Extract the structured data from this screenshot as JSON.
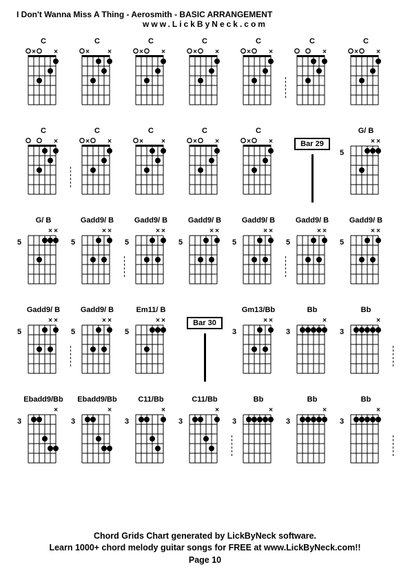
{
  "title": "I Don't Wanna Miss A Thing - Aerosmith - BASIC ARRANGEMENT",
  "subtitle": "www.LickByNeck.com",
  "footer1": "Chord Grids Chart generated by LickByNeck software.",
  "footer2": "Learn 1000+ chord melody guitar songs for FREE at www.LickByNeck.com!!",
  "page": "Page 10",
  "colors": {
    "bg": "#ffffff",
    "line": "#000000",
    "dot": "#000000",
    "text": "#000000"
  },
  "chords": [
    {
      "name": "C",
      "fret": "",
      "type": "chord",
      "nut": true,
      "top": [
        "x",
        "",
        "",
        "o",
        "x",
        "o"
      ],
      "dots": [
        [
          0,
          1
        ],
        [
          1,
          2
        ],
        [
          3,
          3
        ]
      ],
      "sep": false
    },
    {
      "name": "C",
      "fret": "",
      "type": "chord",
      "nut": true,
      "top": [
        "x",
        "",
        "",
        "",
        "x",
        "o"
      ],
      "dots": [
        [
          0,
          1
        ],
        [
          1,
          2
        ],
        [
          2,
          1
        ],
        [
          3,
          3
        ]
      ],
      "sep": false
    },
    {
      "name": "C",
      "fret": "",
      "type": "chord",
      "nut": true,
      "top": [
        "x",
        "",
        "",
        "o",
        "x",
        "o"
      ],
      "dots": [
        [
          0,
          1
        ],
        [
          1,
          2
        ],
        [
          3,
          3
        ]
      ],
      "sep": false
    },
    {
      "name": "C",
      "fret": "",
      "type": "chord",
      "nut": true,
      "top": [
        "x",
        "",
        "",
        "o",
        "x",
        "o"
      ],
      "dots": [
        [
          0,
          1
        ],
        [
          1,
          2
        ],
        [
          3,
          3
        ]
      ],
      "sep": false
    },
    {
      "name": "C",
      "fret": "",
      "type": "chord",
      "nut": true,
      "top": [
        "x",
        "",
        "",
        "o",
        "x",
        "o"
      ],
      "dots": [
        [
          0,
          1
        ],
        [
          1,
          2
        ],
        [
          3,
          3
        ]
      ],
      "sep": true
    },
    {
      "name": "C",
      "fret": "",
      "type": "chord",
      "nut": true,
      "top": [
        "x",
        "",
        "",
        "o",
        "",
        "o"
      ],
      "dots": [
        [
          0,
          1
        ],
        [
          1,
          2
        ],
        [
          2,
          1
        ],
        [
          3,
          3
        ]
      ],
      "sep": false
    },
    {
      "name": "C",
      "fret": "",
      "type": "chord",
      "nut": true,
      "top": [
        "x",
        "",
        "",
        "o",
        "x",
        "o"
      ],
      "dots": [
        [
          0,
          1
        ],
        [
          1,
          2
        ],
        [
          3,
          3
        ]
      ],
      "sep": false
    },
    {
      "name": "C",
      "fret": "",
      "type": "chord",
      "nut": true,
      "top": [
        "x",
        "",
        "",
        "o",
        "",
        "o"
      ],
      "dots": [
        [
          0,
          1
        ],
        [
          1,
          2
        ],
        [
          2,
          1
        ],
        [
          3,
          3
        ]
      ],
      "sep": true
    },
    {
      "name": "C",
      "fret": "",
      "type": "chord",
      "nut": true,
      "top": [
        "x",
        "",
        "",
        "o",
        "x",
        "o"
      ],
      "dots": [
        [
          0,
          1
        ],
        [
          1,
          2
        ],
        [
          3,
          3
        ]
      ],
      "sep": false
    },
    {
      "name": "C",
      "fret": "",
      "type": "chord",
      "nut": true,
      "top": [
        "x",
        "",
        "",
        "",
        "x",
        "o"
      ],
      "dots": [
        [
          0,
          1
        ],
        [
          1,
          2
        ],
        [
          2,
          1
        ],
        [
          3,
          3
        ]
      ],
      "sep": false
    },
    {
      "name": "C",
      "fret": "",
      "type": "chord",
      "nut": true,
      "top": [
        "x",
        "",
        "",
        "o",
        "x",
        "o"
      ],
      "dots": [
        [
          0,
          1
        ],
        [
          1,
          2
        ],
        [
          3,
          3
        ]
      ],
      "sep": false
    },
    {
      "name": "C",
      "fret": "",
      "type": "chord",
      "nut": true,
      "top": [
        "x",
        "",
        "",
        "o",
        "x",
        "o"
      ],
      "dots": [
        [
          0,
          1
        ],
        [
          1,
          2
        ],
        [
          3,
          3
        ]
      ],
      "sep": false
    },
    {
      "name": "Bar 29",
      "type": "bar"
    },
    {
      "name": "G/ B",
      "fret": "5",
      "type": "chord",
      "nut": false,
      "top": [
        "x",
        "x",
        "",
        "",
        "",
        ""
      ],
      "dots": [
        [
          0,
          1
        ],
        [
          1,
          1
        ],
        [
          2,
          1
        ],
        [
          3,
          3
        ]
      ],
      "sep": false
    },
    {
      "name": "G/ B",
      "fret": "5",
      "type": "chord",
      "nut": false,
      "top": [
        "x",
        "x",
        "",
        "",
        "",
        ""
      ],
      "dots": [
        [
          0,
          1
        ],
        [
          1,
          1
        ],
        [
          2,
          1
        ],
        [
          3,
          3
        ]
      ],
      "sep": false
    },
    {
      "name": "Gadd9/ B",
      "fret": "5",
      "type": "chord",
      "nut": false,
      "top": [
        "x",
        "x",
        "",
        "",
        "",
        ""
      ],
      "dots": [
        [
          0,
          1
        ],
        [
          1,
          3
        ],
        [
          2,
          1
        ],
        [
          3,
          3
        ]
      ],
      "sep": true
    },
    {
      "name": "Gadd9/ B",
      "fret": "5",
      "type": "chord",
      "nut": false,
      "top": [
        "x",
        "x",
        "",
        "",
        "",
        ""
      ],
      "dots": [
        [
          0,
          1
        ],
        [
          1,
          3
        ],
        [
          2,
          1
        ],
        [
          3,
          3
        ]
      ],
      "sep": false
    },
    {
      "name": "Gadd9/ B",
      "fret": "5",
      "type": "chord",
      "nut": false,
      "top": [
        "x",
        "x",
        "",
        "",
        "",
        ""
      ],
      "dots": [
        [
          0,
          1
        ],
        [
          1,
          3
        ],
        [
          2,
          1
        ],
        [
          3,
          3
        ]
      ],
      "sep": false
    },
    {
      "name": "Gadd9/ B",
      "fret": "5",
      "type": "chord",
      "nut": false,
      "top": [
        "x",
        "x",
        "",
        "",
        "",
        ""
      ],
      "dots": [
        [
          0,
          1
        ],
        [
          1,
          3
        ],
        [
          2,
          1
        ],
        [
          3,
          3
        ]
      ],
      "sep": true
    },
    {
      "name": "Gadd9/ B",
      "fret": "5",
      "type": "chord",
      "nut": false,
      "top": [
        "x",
        "x",
        "",
        "",
        "",
        ""
      ],
      "dots": [
        [
          0,
          1
        ],
        [
          1,
          3
        ],
        [
          2,
          1
        ],
        [
          3,
          3
        ]
      ],
      "sep": false
    },
    {
      "name": "Gadd9/ B",
      "fret": "5",
      "type": "chord",
      "nut": false,
      "top": [
        "x",
        "x",
        "",
        "",
        "",
        ""
      ],
      "dots": [
        [
          0,
          1
        ],
        [
          1,
          3
        ],
        [
          2,
          1
        ],
        [
          3,
          3
        ]
      ],
      "sep": false
    },
    {
      "name": "Gadd9/ B",
      "fret": "5",
      "type": "chord",
      "nut": false,
      "top": [
        "x",
        "x",
        "",
        "",
        "",
        ""
      ],
      "dots": [
        [
          0,
          1
        ],
        [
          1,
          3
        ],
        [
          2,
          1
        ],
        [
          3,
          3
        ]
      ],
      "sep": true
    },
    {
      "name": "Gadd9/ B",
      "fret": "5",
      "type": "chord",
      "nut": false,
      "top": [
        "x",
        "x",
        "",
        "",
        "",
        ""
      ],
      "dots": [
        [
          0,
          1
        ],
        [
          1,
          3
        ],
        [
          2,
          1
        ],
        [
          3,
          3
        ]
      ],
      "sep": false
    },
    {
      "name": "Em11/ B",
      "fret": "5",
      "type": "chord",
      "nut": false,
      "top": [
        "x",
        "x",
        "",
        "",
        "",
        ""
      ],
      "dots": [
        [
          0,
          1
        ],
        [
          1,
          1
        ],
        [
          2,
          1
        ],
        [
          3,
          3
        ]
      ],
      "sep": false
    },
    {
      "name": "Bar 30",
      "type": "bar"
    },
    {
      "name": "Gm13/Bb",
      "fret": "3",
      "type": "chord",
      "nut": false,
      "top": [
        "x",
        "x",
        "",
        "",
        "",
        ""
      ],
      "dots": [
        [
          0,
          1
        ],
        [
          1,
          3
        ],
        [
          2,
          1
        ],
        [
          3,
          3
        ]
      ],
      "sep": false
    },
    {
      "name": "Bb",
      "fret": "3",
      "type": "chord",
      "nut": false,
      "top": [
        "x",
        "",
        "",
        "",
        "",
        ""
      ],
      "dots": [
        [
          0,
          1
        ],
        [
          1,
          1
        ],
        [
          2,
          1
        ],
        [
          3,
          1
        ],
        [
          4,
          1
        ]
      ],
      "sep": false
    },
    {
      "name": "Bb",
      "fret": "3",
      "type": "chord",
      "nut": false,
      "top": [
        "x",
        "",
        "",
        "",
        "",
        ""
      ],
      "dots": [
        [
          0,
          1
        ],
        [
          1,
          1
        ],
        [
          2,
          1
        ],
        [
          3,
          1
        ],
        [
          4,
          1
        ]
      ],
      "sep": true
    },
    {
      "name": "Ebadd9/Bb",
      "fret": "3",
      "type": "chord",
      "nut": false,
      "top": [
        "x",
        "",
        "",
        "",
        "",
        ""
      ],
      "dots": [
        [
          0,
          4
        ],
        [
          1,
          4
        ],
        [
          2,
          3
        ],
        [
          3,
          1
        ],
        [
          4,
          1
        ]
      ],
      "sep": false
    },
    {
      "name": "Ebadd9/Bb",
      "fret": "3",
      "type": "chord",
      "nut": false,
      "top": [
        "x",
        "",
        "",
        "",
        "",
        ""
      ],
      "dots": [
        [
          0,
          4
        ],
        [
          1,
          4
        ],
        [
          2,
          3
        ],
        [
          3,
          1
        ],
        [
          4,
          1
        ]
      ],
      "sep": false
    },
    {
      "name": "C11/Bb",
      "fret": "3",
      "type": "chord",
      "nut": false,
      "top": [
        "x",
        "",
        "",
        "",
        "",
        ""
      ],
      "dots": [
        [
          0,
          1
        ],
        [
          1,
          4
        ],
        [
          2,
          3
        ],
        [
          3,
          1
        ],
        [
          4,
          1
        ]
      ],
      "sep": false
    },
    {
      "name": "C11/Bb",
      "fret": "3",
      "type": "chord",
      "nut": false,
      "top": [
        "x",
        "",
        "",
        "",
        "",
        ""
      ],
      "dots": [
        [
          0,
          1
        ],
        [
          1,
          4
        ],
        [
          2,
          3
        ],
        [
          3,
          1
        ],
        [
          4,
          1
        ]
      ],
      "sep": true
    },
    {
      "name": "Bb",
      "fret": "3",
      "type": "chord",
      "nut": false,
      "top": [
        "x",
        "",
        "",
        "",
        "",
        ""
      ],
      "dots": [
        [
          0,
          1
        ],
        [
          1,
          1
        ],
        [
          2,
          1
        ],
        [
          3,
          1
        ],
        [
          4,
          1
        ]
      ],
      "sep": false
    },
    {
      "name": "Bb",
      "fret": "3",
      "type": "chord",
      "nut": false,
      "top": [
        "x",
        "",
        "",
        "",
        "",
        ""
      ],
      "dots": [
        [
          0,
          1
        ],
        [
          1,
          1
        ],
        [
          2,
          1
        ],
        [
          3,
          1
        ],
        [
          4,
          1
        ]
      ],
      "sep": false
    },
    {
      "name": "Bb",
      "fret": "3",
      "type": "chord",
      "nut": false,
      "top": [
        "x",
        "",
        "",
        "",
        "",
        ""
      ],
      "dots": [
        [
          0,
          1
        ],
        [
          1,
          1
        ],
        [
          2,
          1
        ],
        [
          3,
          1
        ],
        [
          4,
          1
        ]
      ],
      "sep": true
    }
  ]
}
